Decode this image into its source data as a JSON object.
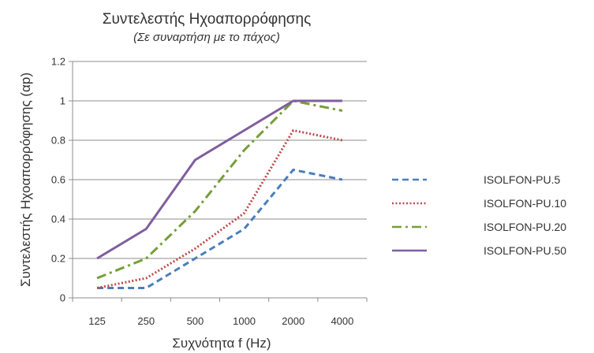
{
  "chart_data": {
    "type": "line",
    "title": "Συντελεστής Ηχοαπορρόφησης",
    "subtitle": "(Σε συναρτήση με το πάχος)",
    "xlabel": "Συχνότητα f (Hz)",
    "ylabel": "Συντελεστής Ηχοαπορρόφησης (αp)",
    "categories": [
      "125",
      "250",
      "500",
      "1000",
      "2000",
      "4000"
    ],
    "yticks": [
      "0",
      "0.2",
      "0.4",
      "0.6",
      "0.8",
      "1",
      "1.2"
    ],
    "ylim": [
      0,
      1.2
    ],
    "grid": true,
    "legend_position": "right",
    "series": [
      {
        "name": "ISOLFON-PU.5",
        "values": [
          0.05,
          0.05,
          0.2,
          0.35,
          0.65,
          0.6
        ],
        "color": "#4a7ebb",
        "dash": "dashed"
      },
      {
        "name": "ISOLFON-PU.10",
        "values": [
          0.05,
          0.1,
          0.25,
          0.43,
          0.85,
          0.8
        ],
        "color": "#be4b48",
        "dash": "dotted"
      },
      {
        "name": "ISOLFON-PU.20",
        "values": [
          0.1,
          0.2,
          0.44,
          0.75,
          1.0,
          0.95
        ],
        "color": "#769e38",
        "dash": "dash-dot"
      },
      {
        "name": "ISOLFON-PU.50",
        "values": [
          0.2,
          0.35,
          0.7,
          0.85,
          1.0,
          1.0
        ],
        "color": "#7f5e9e",
        "dash": "solid"
      }
    ]
  }
}
